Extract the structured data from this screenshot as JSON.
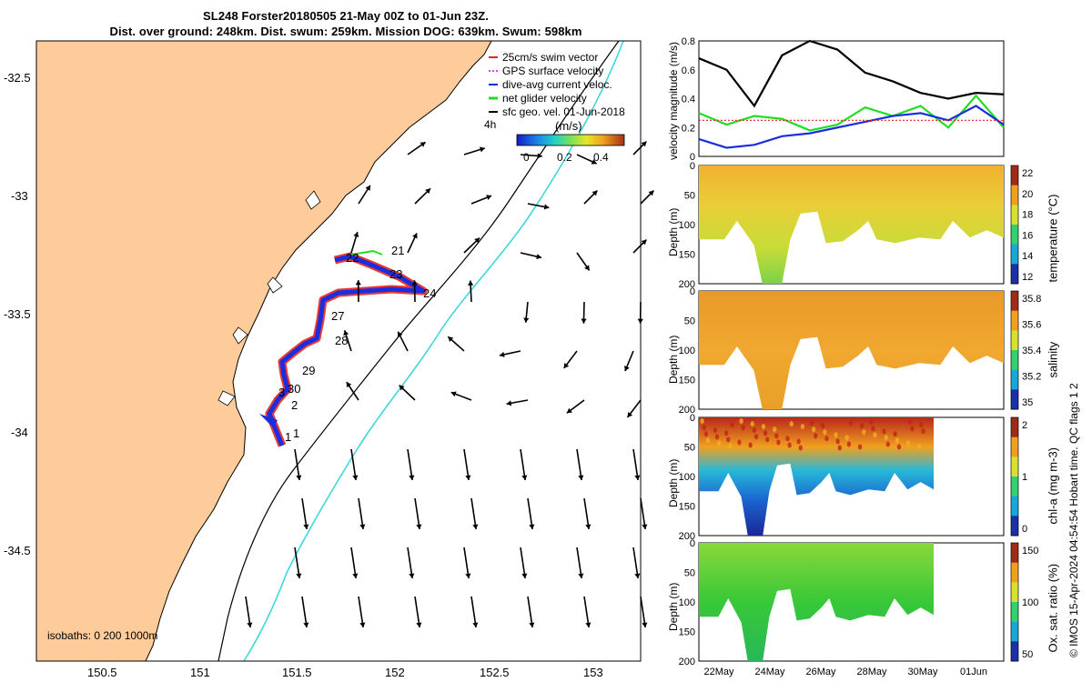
{
  "title": {
    "line1": "SL248 Forster20180505 21-May 00Z to 01-Jun 23Z.",
    "line2": "Dist. over ground: 248km. Dist. swum: 259km. Mission DOG: 639km. Swum: 598km"
  },
  "map": {
    "xticks": [
      "150.5",
      "151",
      "151.5",
      "152",
      "152.5",
      "153"
    ],
    "yticks": [
      "-32.5",
      "-33",
      "-33.5",
      "-34",
      "-34.5"
    ],
    "isobaths": "isobaths: 0   200   1000m",
    "legend": [
      {
        "label": "25cm/s swim vector",
        "color": "#e8241c"
      },
      {
        "label": "GPS surface velocity",
        "color": "#e040e0"
      },
      {
        "label": "dive-avg current veloc.",
        "color": "#1a2ee0"
      },
      {
        "label": "net glider velocity",
        "color": "#22dd22"
      },
      {
        "label": "sfc geo. vel. 01-Jun-2018",
        "color": "#000000"
      }
    ],
    "vector_label": "4h",
    "colorbar_title": "(m/s)",
    "colorbar_ticks": [
      "0",
      "0.2",
      "0.4"
    ],
    "day_labels": [
      "21",
      "22",
      "23",
      "24",
      "27",
      "28",
      "29",
      "30",
      "3",
      "2",
      "1",
      "1"
    ],
    "colors": {
      "land": "#fdcc9a",
      "coast": "#000000",
      "isobath200": "#3fd6dc",
      "track_red": "#e8241c",
      "track_blue": "#1a2ee0"
    }
  },
  "chart_data": [
    {
      "type": "line",
      "title": "",
      "ylabel": "velocity magnitude (m/s)",
      "ylim": [
        0,
        0.8
      ],
      "yticks": [
        "0",
        "0.2",
        "0.4",
        "0.6",
        "0.8"
      ],
      "x": [
        "21May",
        "22May",
        "23May",
        "24May",
        "25May",
        "26May",
        "27May",
        "28May",
        "29May",
        "30May",
        "31May",
        "01Jun"
      ],
      "series": [
        {
          "name": "sfc geo. vel.",
          "color": "#000000",
          "values": [
            0.68,
            0.6,
            0.35,
            0.7,
            0.8,
            0.74,
            0.58,
            0.52,
            0.44,
            0.4,
            0.44,
            0.43
          ]
        },
        {
          "name": "net glider velocity",
          "color": "#22dd22",
          "values": [
            0.3,
            0.22,
            0.28,
            0.26,
            0.18,
            0.22,
            0.34,
            0.28,
            0.35,
            0.2,
            0.42,
            0.2
          ]
        },
        {
          "name": "dive-avg current veloc.",
          "color": "#1a2ee0",
          "values": [
            0.12,
            0.06,
            0.08,
            0.14,
            0.16,
            0.2,
            0.24,
            0.28,
            0.3,
            0.25,
            0.35,
            0.22
          ]
        },
        {
          "name": "25cm/s swim vector",
          "color": "#e8241c",
          "values": [
            0.25,
            0.25,
            0.25,
            0.25,
            0.25,
            0.25,
            0.25,
            0.25,
            0.25,
            0.25,
            0.25,
            0.25
          ]
        }
      ]
    },
    {
      "type": "heatmap",
      "ylabel": "Depth (m)",
      "colorbar_label": "temperature (°C)",
      "colorbar_ticks": [
        "12",
        "14",
        "16",
        "18",
        "20",
        "22"
      ],
      "ylim": [
        0,
        200
      ],
      "yticks": [
        "0",
        "50",
        "100",
        "150",
        "200"
      ]
    },
    {
      "type": "heatmap",
      "ylabel": "Depth (m)",
      "colorbar_label": "salinity",
      "colorbar_ticks": [
        "35",
        "35.2",
        "35.4",
        "35.6",
        "35.8"
      ],
      "ylim": [
        0,
        200
      ],
      "yticks": [
        "0",
        "50",
        "100",
        "150",
        "200"
      ]
    },
    {
      "type": "heatmap",
      "ylabel": "Depth (m)",
      "colorbar_label": "chl-a (mg m-3)",
      "colorbar_ticks": [
        "0",
        "1",
        "2"
      ],
      "ylim": [
        0,
        200
      ],
      "yticks": [
        "0",
        "50",
        "100",
        "150",
        "200"
      ]
    },
    {
      "type": "heatmap",
      "ylabel": "Depth (m)",
      "colorbar_label": "Ox. sat. ratio (%)",
      "colorbar_ticks": [
        "50",
        "100",
        "150"
      ],
      "ylim": [
        0,
        200
      ],
      "yticks": [
        "0",
        "50",
        "100",
        "150",
        "200"
      ],
      "xticks": [
        "22May",
        "24May",
        "26May",
        "28May",
        "30May",
        "01Jun"
      ]
    }
  ],
  "copyright": "© IMOS 15-Apr-2024 04:54:54 Hobart time. QC flags 1  2"
}
